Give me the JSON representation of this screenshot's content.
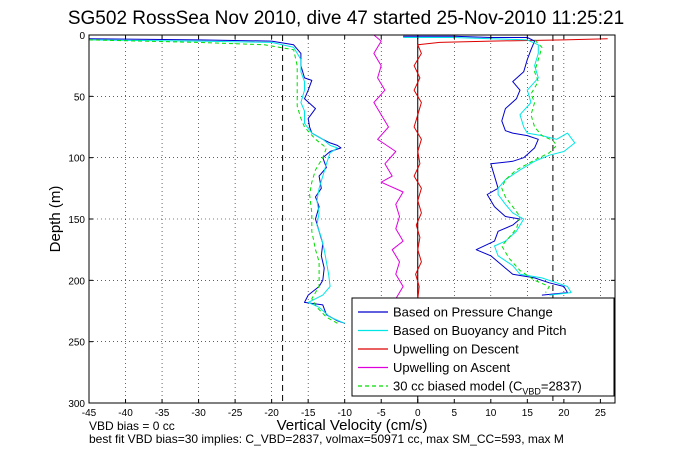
{
  "chart_data": {
    "type": "line",
    "title": "SG502 RossSea Nov 2010, dive 47 started 25-Nov-2010 11:25:21",
    "xlabel": "Vertical Velocity (cm/s)",
    "ylabel": "Depth (m)",
    "xlim": [
      -45,
      27
    ],
    "ylim": [
      300,
      0
    ],
    "y_reversed": true,
    "grid": true,
    "x_ticks": [
      "-45",
      "-40",
      "-35",
      "-30",
      "-25",
      "-20",
      "-15",
      "-10",
      "-5",
      "0",
      "5",
      "10",
      "15",
      "20",
      "25"
    ],
    "y_ticks": [
      "0",
      "50",
      "100",
      "150",
      "200",
      "250",
      "300"
    ],
    "legend_position": "bottom-right",
    "legend": [
      {
        "label": "Based on Pressure Change",
        "color": "#0000cc",
        "style": "solid"
      },
      {
        "label": "Based on Buoyancy and Pitch",
        "color": "#00e6e6",
        "style": "solid"
      },
      {
        "label": "Upwelling on Descent",
        "color": "#dd0000",
        "style": "solid"
      },
      {
        "label": "Upwelling on Ascent",
        "color": "#dd00dd",
        "style": "solid"
      },
      {
        "label": "30 cc biased model (C",
        "sub": "VBD",
        "suffix": "=2837)",
        "color": "#00dd00",
        "style": "dashed"
      }
    ],
    "reference_lines": [
      {
        "x": -18.5,
        "style": "dashed",
        "color": "#000000"
      },
      {
        "x": 0,
        "style": "solid",
        "color": "#000000"
      },
      {
        "x": 18.5,
        "style": "dashed",
        "color": "#000000"
      }
    ],
    "series": [
      {
        "name": "Based on Pressure Change (descent)",
        "color": "#0000cc",
        "points": [
          [
            -45,
            3
          ],
          [
            -30,
            4
          ],
          [
            -20,
            5
          ],
          [
            -17,
            8
          ],
          [
            -16,
            15
          ],
          [
            -16,
            25
          ],
          [
            -15.5,
            35
          ],
          [
            -14.5,
            37
          ],
          [
            -15,
            45
          ],
          [
            -15.5,
            52
          ],
          [
            -14,
            60
          ],
          [
            -15,
            68
          ],
          [
            -14.8,
            75
          ],
          [
            -14.5,
            80
          ],
          [
            -13,
            85
          ],
          [
            -12,
            88
          ],
          [
            -11,
            90
          ],
          [
            -10.5,
            92
          ],
          [
            -12,
            95
          ],
          [
            -13,
            100
          ],
          [
            -12.5,
            108
          ],
          [
            -13.5,
            115
          ],
          [
            -13.2,
            125
          ],
          [
            -14,
            132
          ],
          [
            -13.5,
            140
          ],
          [
            -14,
            150
          ],
          [
            -13.5,
            160
          ],
          [
            -13,
            170
          ],
          [
            -13.2,
            180
          ],
          [
            -12.8,
            190
          ],
          [
            -13,
            200
          ],
          [
            -13.5,
            205
          ],
          [
            -15,
            212
          ],
          [
            -15.5,
            218
          ],
          [
            -13,
            220
          ],
          [
            -12.5,
            228
          ],
          [
            -11,
            233
          ],
          [
            -10,
            235
          ]
        ]
      },
      {
        "name": "Based on Buoyancy and Pitch (descent)",
        "color": "#00e6e6",
        "points": [
          [
            -45,
            4
          ],
          [
            -30,
            5
          ],
          [
            -20,
            6
          ],
          [
            -17,
            10
          ],
          [
            -16,
            20
          ],
          [
            -16,
            30
          ],
          [
            -15.5,
            38
          ],
          [
            -15.5,
            45
          ],
          [
            -16,
            55
          ],
          [
            -15.5,
            62
          ],
          [
            -15.5,
            72
          ],
          [
            -14.5,
            80
          ],
          [
            -13,
            85
          ],
          [
            -12,
            90
          ],
          [
            -11,
            92
          ],
          [
            -12,
            96
          ],
          [
            -12.5,
            105
          ],
          [
            -13,
            115
          ],
          [
            -13.5,
            125
          ],
          [
            -13.8,
            135
          ],
          [
            -13.5,
            145
          ],
          [
            -13.8,
            155
          ],
          [
            -13.2,
            165
          ],
          [
            -12.8,
            175
          ],
          [
            -12.5,
            185
          ],
          [
            -12.2,
            195
          ],
          [
            -12,
            205
          ],
          [
            -13,
            212
          ],
          [
            -15,
            218
          ],
          [
            -13.5,
            222
          ],
          [
            -12,
            230
          ],
          [
            -10,
            235
          ]
        ]
      },
      {
        "name": "30 cc biased model (descent)",
        "color": "#00dd00",
        "dashed": true,
        "points": [
          [
            -45,
            4
          ],
          [
            -30,
            6
          ],
          [
            -21,
            8
          ],
          [
            -17,
            12
          ],
          [
            -16.5,
            25
          ],
          [
            -16.5,
            40
          ],
          [
            -16.5,
            50
          ],
          [
            -16.5,
            58
          ],
          [
            -16,
            68
          ],
          [
            -15.5,
            75
          ],
          [
            -14,
            85
          ],
          [
            -12.5,
            92
          ],
          [
            -13,
            100
          ],
          [
            -14,
            110
          ],
          [
            -14.5,
            120
          ],
          [
            -14.8,
            130
          ],
          [
            -14.5,
            145
          ],
          [
            -14.5,
            160
          ],
          [
            -14,
            175
          ],
          [
            -13.5,
            185
          ],
          [
            -13.5,
            195
          ],
          [
            -13.5,
            205
          ],
          [
            -14.5,
            215
          ],
          [
            -13.8,
            222
          ],
          [
            -12.5,
            230
          ],
          [
            -11,
            235
          ]
        ]
      },
      {
        "name": "Upwelling on Ascent",
        "color": "#dd00dd",
        "points": [
          [
            -6,
            0
          ],
          [
            -5,
            5
          ],
          [
            -6,
            15
          ],
          [
            -5,
            25
          ],
          [
            -5.5,
            35
          ],
          [
            -4.5,
            45
          ],
          [
            -6,
            55
          ],
          [
            -5,
            65
          ],
          [
            -4,
            75
          ],
          [
            -5.5,
            85
          ],
          [
            -3,
            95
          ],
          [
            -4.5,
            105
          ],
          [
            -3.5,
            115
          ],
          [
            -5,
            120
          ],
          [
            -2,
            128
          ],
          [
            -3,
            138
          ],
          [
            -2.5,
            148
          ],
          [
            -3,
            158
          ],
          [
            -2,
            168
          ],
          [
            -3.5,
            175
          ],
          [
            -2.5,
            185
          ],
          [
            -3,
            195
          ],
          [
            -2,
            205
          ],
          [
            -3,
            215
          ],
          [
            -2.5,
            222
          ]
        ]
      },
      {
        "name": "Upwelling on Descent",
        "color": "#dd0000",
        "points": [
          [
            26,
            3
          ],
          [
            20,
            4
          ],
          [
            10,
            5
          ],
          [
            3,
            6
          ],
          [
            0,
            8
          ],
          [
            0.5,
            15
          ],
          [
            -0.5,
            25
          ],
          [
            0.3,
            35
          ],
          [
            -0.5,
            45
          ],
          [
            0.5,
            55
          ],
          [
            0,
            65
          ],
          [
            -0.5,
            75
          ],
          [
            0.5,
            85
          ],
          [
            0,
            95
          ],
          [
            0.3,
            105
          ],
          [
            -0.5,
            115
          ],
          [
            0.5,
            125
          ],
          [
            0,
            135
          ],
          [
            0.5,
            145
          ],
          [
            -0.2,
            155
          ],
          [
            0.3,
            165
          ],
          [
            0,
            175
          ],
          [
            0.5,
            185
          ],
          [
            -0.3,
            195
          ],
          [
            0.2,
            205
          ],
          [
            0,
            215
          ],
          [
            0.2,
            222
          ]
        ]
      },
      {
        "name": "Based on Pressure Change (ascent)",
        "color": "#0000cc",
        "points": [
          [
            -2,
            1
          ],
          [
            5,
            1
          ],
          [
            10,
            2
          ],
          [
            15,
            2
          ],
          [
            16,
            5
          ],
          [
            15.5,
            12
          ],
          [
            15,
            20
          ],
          [
            14.5,
            30
          ],
          [
            13,
            38
          ],
          [
            14,
            45
          ],
          [
            13.5,
            52
          ],
          [
            12,
            60
          ],
          [
            11.5,
            70
          ],
          [
            12,
            78
          ],
          [
            13,
            80
          ],
          [
            15,
            82
          ],
          [
            16.5,
            85
          ],
          [
            16,
            92
          ],
          [
            14.5,
            100
          ],
          [
            13,
            103
          ],
          [
            10,
            105
          ],
          [
            10.5,
            115
          ],
          [
            11,
            125
          ],
          [
            9.5,
            130
          ],
          [
            10.5,
            140
          ],
          [
            12,
            148
          ],
          [
            14,
            150
          ],
          [
            13,
            155
          ],
          [
            11,
            160
          ],
          [
            10.5,
            168
          ],
          [
            8,
            175
          ],
          [
            10,
            180
          ],
          [
            12,
            190
          ],
          [
            13,
            195
          ],
          [
            16,
            198
          ],
          [
            18,
            202
          ],
          [
            20,
            205
          ],
          [
            20.5,
            210
          ],
          [
            17,
            212
          ]
        ]
      },
      {
        "name": "Based on Buoyancy and Pitch (ascent)",
        "color": "#00e6e6",
        "points": [
          [
            -2,
            2
          ],
          [
            5,
            2
          ],
          [
            10,
            3
          ],
          [
            15,
            4
          ],
          [
            16.5,
            8
          ],
          [
            16.5,
            15
          ],
          [
            16,
            25
          ],
          [
            16.5,
            35
          ],
          [
            15,
            45
          ],
          [
            15.5,
            55
          ],
          [
            14,
            65
          ],
          [
            14.5,
            75
          ],
          [
            15,
            80
          ],
          [
            17,
            82
          ],
          [
            19,
            85
          ],
          [
            20.5,
            80
          ],
          [
            21.5,
            88
          ],
          [
            20,
            95
          ],
          [
            18,
            98
          ],
          [
            16,
            103
          ],
          [
            14,
            110
          ],
          [
            12,
            118
          ],
          [
            11,
            125
          ],
          [
            11,
            130
          ],
          [
            12,
            138
          ],
          [
            13,
            145
          ],
          [
            14.5,
            150
          ],
          [
            13.5,
            160
          ],
          [
            12,
            168
          ],
          [
            10.5,
            172
          ],
          [
            11,
            180
          ],
          [
            13,
            188
          ],
          [
            14,
            195
          ],
          [
            17,
            198
          ],
          [
            19,
            202
          ],
          [
            20.5,
            205
          ],
          [
            21,
            210
          ],
          [
            18,
            212
          ]
        ]
      },
      {
        "name": "30 cc biased model (ascent)",
        "color": "#00dd00",
        "dashed": true,
        "points": [
          [
            16,
            4
          ],
          [
            17,
            10
          ],
          [
            16.5,
            20
          ],
          [
            16,
            30
          ],
          [
            16.5,
            38
          ],
          [
            15.5,
            48
          ],
          [
            16,
            55
          ],
          [
            15.5,
            65
          ],
          [
            16,
            75
          ],
          [
            17,
            82
          ],
          [
            18.5,
            86
          ],
          [
            19,
            90
          ],
          [
            18,
            96
          ],
          [
            16,
            102
          ],
          [
            13.5,
            110
          ],
          [
            12,
            118
          ],
          [
            11.5,
            125
          ],
          [
            12,
            132
          ],
          [
            13,
            140
          ],
          [
            14,
            148
          ],
          [
            13.5,
            158
          ],
          [
            12.5,
            165
          ],
          [
            11.5,
            172
          ],
          [
            12.5,
            182
          ],
          [
            14,
            192
          ],
          [
            16,
            200
          ],
          [
            18,
            205
          ],
          [
            17.5,
            210
          ]
        ]
      }
    ]
  },
  "annotations": {
    "vbd_bias": "VBD bias = 0 cc",
    "best_fit": "best fit VBD bias=30 implies: C_VBD=2837, volmax=50971 cc, max SM_CC=593, max M"
  }
}
